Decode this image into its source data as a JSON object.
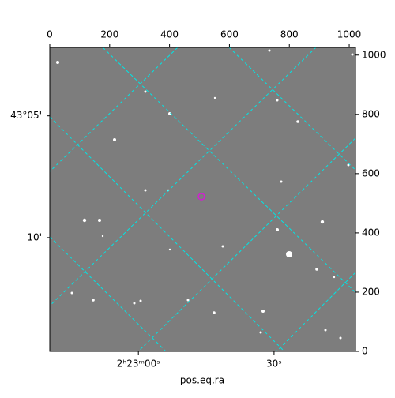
{
  "chart_data": {
    "type": "image",
    "xlabel": "pos.eq.ra",
    "xlim": [
      0,
      1021
    ],
    "ylim": [
      0,
      1026
    ],
    "xticks": [
      0,
      200,
      400,
      600,
      800,
      1000
    ],
    "yticks": [
      0,
      200,
      400,
      600,
      800,
      1000
    ],
    "ra_ticks": [
      {
        "value": 296,
        "label": "2ʰ23ᵐ00ˢ"
      },
      {
        "value": 749,
        "label": "30ˢ"
      }
    ],
    "dec_ticks": [
      {
        "value": 795,
        "label": "43°05'"
      },
      {
        "value": 384,
        "label": "10'"
      }
    ]
  }
}
